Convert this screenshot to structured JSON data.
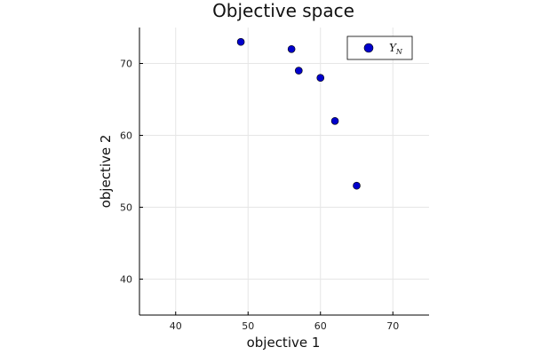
{
  "chart_data": {
    "type": "scatter",
    "title": "Objective space",
    "xlabel": "objective 1",
    "ylabel": "objective 2",
    "xlim": [
      35,
      75
    ],
    "ylim": [
      35,
      75
    ],
    "xticks": [
      40,
      50,
      60,
      70
    ],
    "yticks": [
      40,
      50,
      60,
      70
    ],
    "grid": true,
    "legend_position": "top-right",
    "series": [
      {
        "name": "Y_N",
        "color": "#0000cc",
        "points": [
          {
            "x": 49,
            "y": 73
          },
          {
            "x": 56,
            "y": 72
          },
          {
            "x": 57,
            "y": 69
          },
          {
            "x": 60,
            "y": 68
          },
          {
            "x": 62,
            "y": 62
          },
          {
            "x": 65,
            "y": 53
          }
        ]
      }
    ],
    "legend": {
      "symbol": "Y",
      "subscript": "N"
    }
  }
}
